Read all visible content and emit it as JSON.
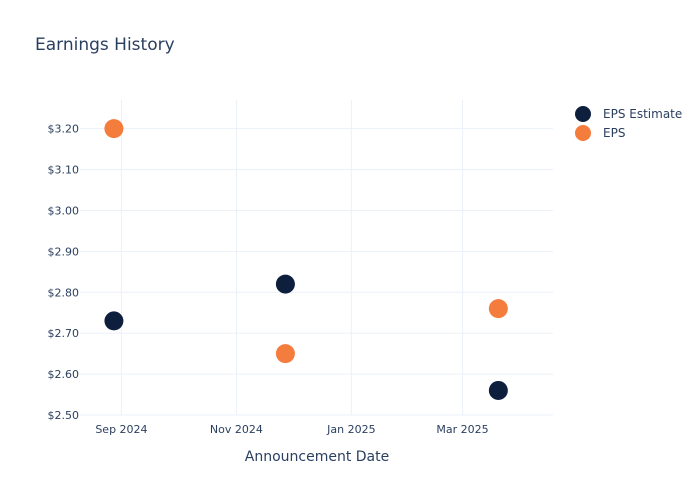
{
  "chart_data": {
    "type": "scatter",
    "title": "Earnings History",
    "xlabel": "Announcement Date",
    "ylabel": "",
    "x_ticks": [
      {
        "date": "2024-09-01",
        "label": "Sep 2024"
      },
      {
        "date": "2024-11-01",
        "label": "Nov 2024"
      },
      {
        "date": "2025-01-01",
        "label": "Jan 2025"
      },
      {
        "date": "2025-03-01",
        "label": "Mar 2025"
      }
    ],
    "xlim": [
      "2024-08-10",
      "2025-04-18"
    ],
    "ylim": [
      2.5,
      3.27
    ],
    "y_ticks": [
      {
        "value": 2.5,
        "label": "$2.50"
      },
      {
        "value": 2.6,
        "label": "$2.60"
      },
      {
        "value": 2.7,
        "label": "$2.70"
      },
      {
        "value": 2.8,
        "label": "$2.80"
      },
      {
        "value": 2.9,
        "label": "$2.90"
      },
      {
        "value": 3.0,
        "label": "$3.00"
      },
      {
        "value": 3.1,
        "label": "$3.10"
      },
      {
        "value": 3.2,
        "label": "$3.20"
      }
    ],
    "grid": true,
    "legend_position": "top-right",
    "series": [
      {
        "name": "EPS Estimate",
        "color": "#0d1f3c",
        "points": [
          {
            "x": "2024-08-28",
            "y": 2.73
          },
          {
            "x": "2024-11-27",
            "y": 2.82
          },
          {
            "x": "2025-03-20",
            "y": 2.56
          }
        ]
      },
      {
        "name": "EPS",
        "color": "#f47c3c",
        "points": [
          {
            "x": "2024-08-28",
            "y": 3.2
          },
          {
            "x": "2024-11-27",
            "y": 2.65
          },
          {
            "x": "2025-03-20",
            "y": 2.76
          }
        ]
      }
    ]
  }
}
